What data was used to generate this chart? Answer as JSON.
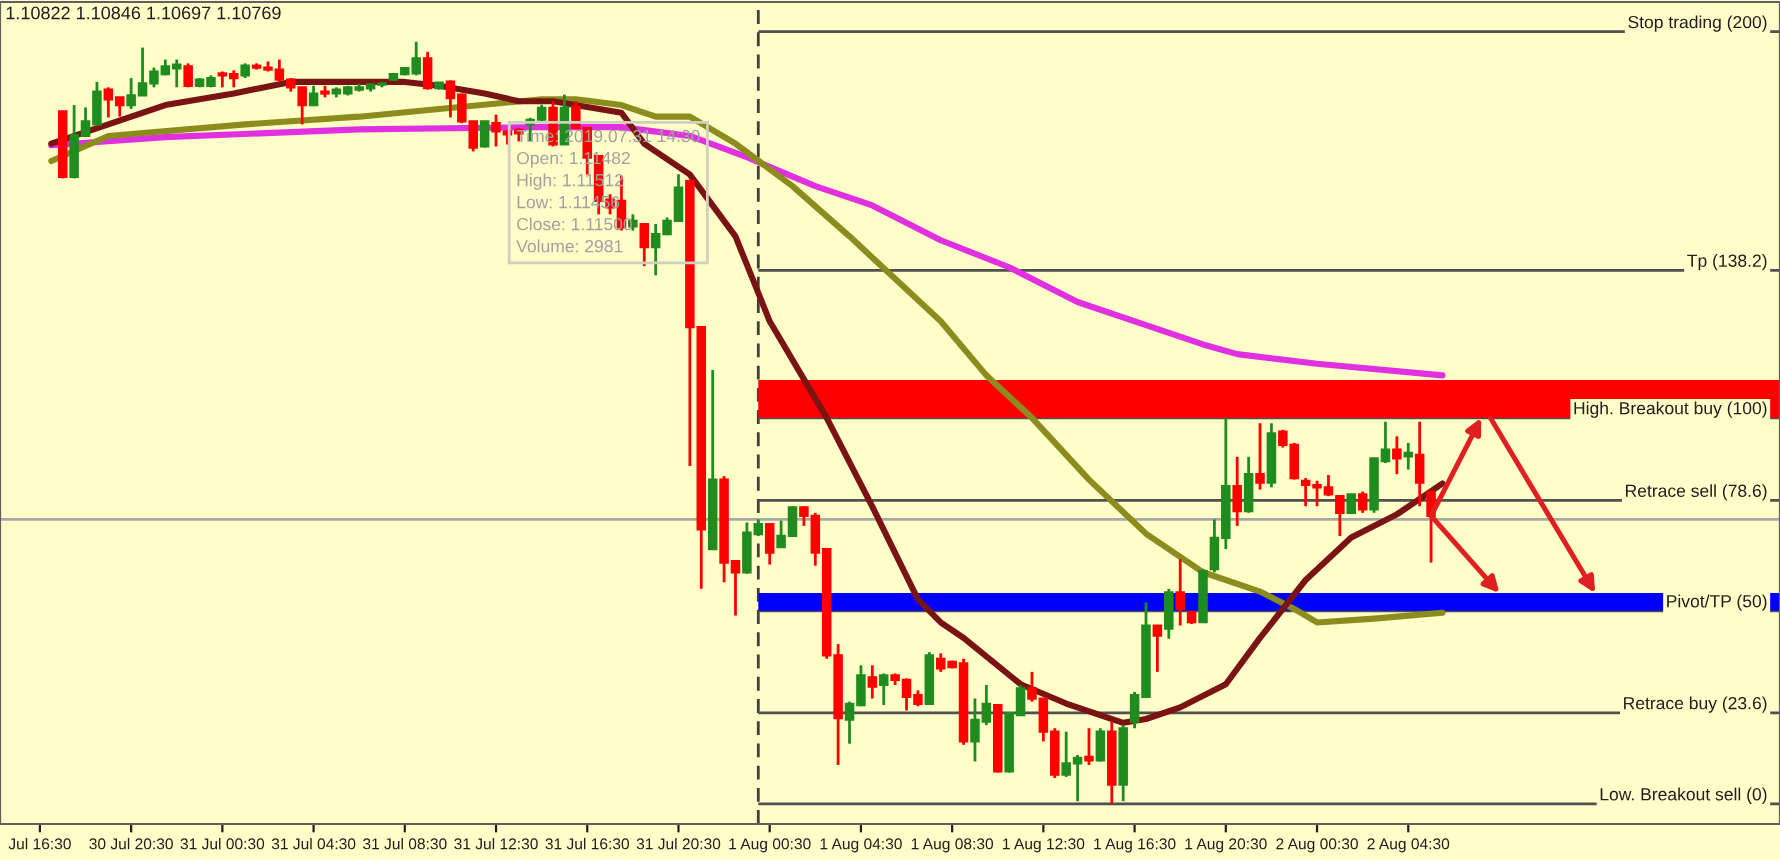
{
  "chart_data": {
    "type": "candlestick",
    "tick_labels": "x",
    "xlim": [
      "2019-07-30T14:45",
      "2019-08-02T20:48"
    ],
    "ylim": [
      -5.2,
      207.7
    ],
    "xticks": [
      {
        "value": "2019-07-30T16:30",
        "label": "Jul 16:30"
      },
      {
        "value": "2019-07-30T20:30",
        "label": "30 Jul 20:30"
      },
      {
        "value": "2019-07-31T00:30",
        "label": "31 Jul 00:30"
      },
      {
        "value": "2019-07-31T04:30",
        "label": "31 Jul 04:30"
      },
      {
        "value": "2019-07-31T08:30",
        "label": "31 Jul 08:30"
      },
      {
        "value": "2019-07-31T12:30",
        "label": "31 Jul 12:30"
      },
      {
        "value": "2019-07-31T16:30",
        "label": "31 Jul 16:30"
      },
      {
        "value": "2019-07-31T20:30",
        "label": "31 Jul 20:30"
      },
      {
        "value": "2019-08-01T00:30",
        "label": "1 Aug 00:30"
      },
      {
        "value": "2019-08-01T04:30",
        "label": "1 Aug 04:30"
      },
      {
        "value": "2019-08-01T08:30",
        "label": "1 Aug 08:30"
      },
      {
        "value": "2019-08-01T12:30",
        "label": "1 Aug 12:30"
      },
      {
        "value": "2019-08-01T16:30",
        "label": "1 Aug 16:30"
      },
      {
        "value": "2019-08-01T20:30",
        "label": "1 Aug 20:30"
      },
      {
        "value": "2019-08-02T00:30",
        "label": "2 Aug 00:30"
      },
      {
        "value": "2019-08-02T04:30",
        "label": "2 Aug 04:30"
      }
    ],
    "annotations": [
      "1.10822 1.10846 1.10697 1.10769",
      "Time: 2019.07.31 14:30\nOpen: 1.11482\nHigh: 1.11512\nLow: 1.11456\nClose: 1.11500\nVolume: 2981"
    ],
    "ref_lines": [
      {
        "axis": "x",
        "value": "2019-08-01T00:00",
        "line_style": "dashed",
        "color": "#404040"
      },
      {
        "axis": "y",
        "value": 200,
        "label": "Stop trading (200)",
        "color": "#505050"
      },
      {
        "axis": "y",
        "value": 138.2,
        "label": "Tp (138.2)",
        "color": "#505050"
      },
      {
        "axis": "y",
        "value": 100,
        "label": "High. Breakout buy (100)",
        "color": "#505050"
      },
      {
        "axis": "y",
        "value": 78.6,
        "label": "Retrace sell (78.6)",
        "color": "#505050"
      },
      {
        "axis": "y",
        "value": 73.7,
        "color": "#a8a8a8"
      },
      {
        "axis": "y",
        "value": 50,
        "label": "Pivot/TP (50)",
        "color": "#505050"
      },
      {
        "axis": "y",
        "value": 23.6,
        "label": "Retrace buy (23.6)",
        "color": "#505050"
      },
      {
        "axis": "y",
        "value": 0,
        "label": "Low. Breakout sell (0)",
        "color": "#505050"
      }
    ],
    "bands": [
      {
        "axis": "y",
        "from": 100,
        "to": 109.8,
        "color": "#ff0000"
      },
      {
        "axis": "y",
        "from": 50,
        "to": 54.6,
        "color": "#0000ff"
      }
    ],
    "series": [
      {
        "type": "line",
        "color": "#e030e0",
        "x": [
          "2019-07-30T17:00",
          "2019-07-30T22:00",
          "2019-07-31T06:30",
          "2019-07-31T14:30",
          "2019-07-31T18:00",
          "2019-07-31T21:00",
          "2019-07-31T23:30",
          "2019-08-01T02:30",
          "2019-08-01T05:00",
          "2019-08-01T08:00",
          "2019-08-01T11:00",
          "2019-08-01T14:00",
          "2019-08-01T17:00",
          "2019-08-01T19:30",
          "2019-08-01T21:00",
          "2019-08-02T00:30",
          "2019-08-02T06:00"
        ],
        "values": [
          170.6,
          172.7,
          174.7,
          175.3,
          175.3,
          173,
          167.5,
          160,
          155,
          146,
          139,
          130,
          124,
          119,
          116.5,
          114,
          111
        ]
      },
      {
        "type": "line",
        "color": "#8c8c1e",
        "x": [
          "2019-07-30T17:00",
          "2019-07-30T19:30",
          "2019-07-31T01:30",
          "2019-07-31T06:30",
          "2019-07-31T10:00",
          "2019-07-31T14:30",
          "2019-07-31T16:00",
          "2019-07-31T18:00",
          "2019-07-31T19:30",
          "2019-07-31T21:00",
          "2019-07-31T23:00",
          "2019-08-01T01:30",
          "2019-08-01T04:00",
          "2019-08-01T06:00",
          "2019-08-01T08:00",
          "2019-08-01T10:00",
          "2019-08-01T12:00",
          "2019-08-01T14:30",
          "2019-08-01T17:00",
          "2019-08-01T19:30",
          "2019-08-01T22:00",
          "2019-08-01T23:30",
          "2019-08-02T00:30",
          "2019-08-02T03:00",
          "2019-08-02T06:00"
        ],
        "values": [
          166.5,
          173,
          176,
          178,
          180,
          182.5,
          182.5,
          181,
          178,
          178,
          171,
          160,
          147,
          136,
          125,
          111,
          100,
          84,
          70,
          60,
          55,
          50.5,
          47,
          48,
          49.5
        ]
      },
      {
        "type": "line",
        "color": "#7a1414",
        "x": [
          "2019-07-30T17:00",
          "2019-07-30T19:30",
          "2019-07-30T22:00",
          "2019-07-31T01:00",
          "2019-07-31T03:30",
          "2019-07-31T06:00",
          "2019-07-31T08:30",
          "2019-07-31T10:00",
          "2019-07-31T12:00",
          "2019-07-31T13:30",
          "2019-07-31T15:00",
          "2019-07-31T18:00",
          "2019-07-31T19:00",
          "2019-07-31T21:00",
          "2019-07-31T23:00",
          "2019-08-01T00:30",
          "2019-08-01T03:00",
          "2019-08-01T05:00",
          "2019-08-01T07:00",
          "2019-08-01T08:00",
          "2019-08-01T09:00",
          "2019-08-01T11:30",
          "2019-08-01T13:30",
          "2019-08-01T16:00",
          "2019-08-01T17:00",
          "2019-08-01T18:30",
          "2019-08-01T20:30",
          "2019-08-01T22:00",
          "2019-08-02T00:00",
          "2019-08-02T02:00",
          "2019-08-02T04:00",
          "2019-08-02T05:30",
          "2019-08-02T06:00"
        ],
        "values": [
          171,
          176,
          181,
          184,
          187,
          187,
          187,
          186,
          184,
          182,
          182,
          179,
          171,
          163,
          147,
          125,
          100,
          77,
          53,
          47,
          43,
          31,
          26,
          21,
          22,
          25,
          31,
          43,
          58,
          69,
          75,
          81,
          83
        ]
      },
      {
        "x": [
          "2019-07-30T17:30",
          "2019-07-30T18:00",
          "2019-07-30T18:30",
          "2019-07-30T19:00",
          "2019-07-30T19:30",
          "2019-07-30T20:00",
          "2019-07-30T20:30",
          "2019-07-30T21:00",
          "2019-07-30T21:30",
          "2019-07-30T22:00",
          "2019-07-30T22:30",
          "2019-07-30T23:00",
          "2019-07-30T23:30",
          "2019-07-31T00:00",
          "2019-07-31T00:30",
          "2019-07-31T01:00",
          "2019-07-31T01:30",
          "2019-07-31T02:00",
          "2019-07-31T02:30",
          "2019-07-31T03:00",
          "2019-07-31T03:30",
          "2019-07-31T04:00",
          "2019-07-31T04:30",
          "2019-07-31T05:00",
          "2019-07-31T05:30",
          "2019-07-31T06:00",
          "2019-07-31T06:30",
          "2019-07-31T07:00",
          "2019-07-31T07:30",
          "2019-07-31T08:00",
          "2019-07-31T08:30",
          "2019-07-31T09:00",
          "2019-07-31T09:30",
          "2019-07-31T10:00",
          "2019-07-31T10:30",
          "2019-07-31T11:00",
          "2019-07-31T11:30",
          "2019-07-31T12:00",
          "2019-07-31T12:30",
          "2019-07-31T13:00",
          "2019-07-31T13:30",
          "2019-07-31T14:00",
          "2019-07-31T14:30",
          "2019-07-31T15:00",
          "2019-07-31T15:30",
          "2019-07-31T16:00",
          "2019-07-31T16:30",
          "2019-07-31T17:00",
          "2019-07-31T17:30",
          "2019-07-31T18:00",
          "2019-07-31T18:30",
          "2019-07-31T19:00",
          "2019-07-31T19:30",
          "2019-07-31T20:00",
          "2019-07-31T20:30",
          "2019-07-31T21:00",
          "2019-07-31T21:30",
          "2019-07-31T22:00",
          "2019-07-31T22:30",
          "2019-07-31T23:00",
          "2019-07-31T23:30",
          "2019-08-01T00:00",
          "2019-08-01T00:30",
          "2019-08-01T01:00",
          "2019-08-01T01:30",
          "2019-08-01T02:00",
          "2019-08-01T02:30",
          "2019-08-01T03:00",
          "2019-08-01T03:30",
          "2019-08-01T04:00",
          "2019-08-01T04:30",
          "2019-08-01T05:00",
          "2019-08-01T05:30",
          "2019-08-01T06:00",
          "2019-08-01T06:30",
          "2019-08-01T07:00",
          "2019-08-01T07:30",
          "2019-08-01T08:00",
          "2019-08-01T08:30",
          "2019-08-01T09:00",
          "2019-08-01T09:30",
          "2019-08-01T10:00",
          "2019-08-01T10:30",
          "2019-08-01T11:00",
          "2019-08-01T11:30",
          "2019-08-01T12:00",
          "2019-08-01T12:30",
          "2019-08-01T13:00",
          "2019-08-01T13:30",
          "2019-08-01T14:00",
          "2019-08-01T14:30",
          "2019-08-01T15:00",
          "2019-08-01T15:30",
          "2019-08-01T16:00",
          "2019-08-01T16:30",
          "2019-08-01T17:00",
          "2019-08-01T17:30",
          "2019-08-01T18:00",
          "2019-08-01T18:30",
          "2019-08-01T19:00",
          "2019-08-01T19:30",
          "2019-08-01T20:00",
          "2019-08-01T20:30",
          "2019-08-01T21:00",
          "2019-08-01T21:30",
          "2019-08-01T22:00",
          "2019-08-01T22:30",
          "2019-08-01T23:00",
          "2019-08-01T23:30",
          "2019-08-02T00:00",
          "2019-08-02T00:30",
          "2019-08-02T01:00",
          "2019-08-02T01:30",
          "2019-08-02T02:00",
          "2019-08-02T02:30",
          "2019-08-02T03:00",
          "2019-08-02T03:30",
          "2019-08-02T04:00",
          "2019-08-02T04:30",
          "2019-08-02T05:00",
          "2019-08-02T05:30"
        ],
        "ohlc": [
          [
            179.4,
            179.5,
            162,
            162.4
          ],
          [
            162.4,
            181,
            162,
            173.2
          ],
          [
            173,
            180.4,
            172.7,
            176.8
          ],
          [
            176,
            187,
            176,
            184.5
          ],
          [
            185,
            185.6,
            177.8,
            182.5
          ],
          [
            183,
            183,
            178,
            181
          ],
          [
            181,
            188,
            180,
            183.5
          ],
          [
            183.5,
            195.9,
            183.5,
            186.6
          ],
          [
            186.6,
            190.7,
            185.6,
            189.7
          ],
          [
            189,
            192.8,
            188.7,
            191
          ],
          [
            190.5,
            192.8,
            185.6,
            191.5
          ],
          [
            191,
            191.8,
            185.6,
            186
          ],
          [
            186,
            188,
            185.6,
            187.6
          ],
          [
            186,
            188.7,
            185.6,
            188
          ],
          [
            189.2,
            189.7,
            185.6,
            188.7
          ],
          [
            189,
            190,
            185.6,
            188
          ],
          [
            188.7,
            191.8,
            188,
            191.2
          ],
          [
            191.2,
            191.8,
            190.2,
            190.7
          ],
          [
            190.7,
            192.3,
            189.7,
            190.2
          ],
          [
            190.2,
            192.8,
            187,
            187.6
          ],
          [
            187.6,
            188,
            184.5,
            185.6
          ],
          [
            185.6,
            185.6,
            176,
            181
          ],
          [
            181,
            186,
            181,
            184
          ],
          [
            184.5,
            186,
            183,
            184
          ],
          [
            184,
            185.6,
            183,
            185
          ],
          [
            184,
            186,
            183.5,
            185.6
          ],
          [
            185,
            186.6,
            184.5,
            185.6
          ],
          [
            185.3,
            186.6,
            184.5,
            186.3
          ],
          [
            186.3,
            187,
            185.6,
            186.6
          ],
          [
            187.6,
            189.2,
            187.3,
            189
          ],
          [
            189,
            190.7,
            188.7,
            190.6
          ],
          [
            189.2,
            197.4,
            188.7,
            193.1
          ],
          [
            193.1,
            194.8,
            185,
            185.4
          ],
          [
            185.4,
            187,
            185,
            186.8
          ],
          [
            187.1,
            187.4,
            177.8,
            182.8
          ],
          [
            183.7,
            184,
            176.3,
            176.8
          ],
          [
            176.8,
            176.8,
            169,
            170
          ],
          [
            170.3,
            176.8,
            170,
            176.8
          ],
          [
            176.3,
            178.5,
            170.3,
            174.2
          ],
          [
            174.2,
            174.6,
            170.8,
            173.4
          ],
          [
            174.6,
            175.1,
            171.6,
            173.7
          ],
          [
            176,
            177.7,
            171.6,
            177.2
          ],
          [
            177.2,
            181.1,
            176.8,
            180.3
          ],
          [
            180.3,
            182,
            170.3,
            170.8
          ],
          [
            170.8,
            183.7,
            170.8,
            180.3
          ],
          [
            180.6,
            182,
            174.7,
            175.1
          ],
          [
            175.1,
            175.1,
            163,
            167.4
          ],
          [
            167.8,
            167.8,
            152.7,
            156.2
          ],
          [
            156.5,
            157.9,
            152.7,
            154.5
          ],
          [
            156.2,
            162.7,
            148.5,
            149.3
          ],
          [
            149.6,
            152.7,
            148.5,
            151
          ],
          [
            150.2,
            150.2,
            139.3,
            144.2
          ],
          [
            144.2,
            150.2,
            136.9,
            147.6
          ],
          [
            147.6,
            151.9,
            147.3,
            151
          ],
          [
            151,
            163.1,
            150.7,
            159.6
          ],
          [
            161.3,
            161.7,
            87.5,
            123.5
          ],
          [
            123.5,
            123.5,
            55.7,
            71.1
          ],
          [
            66,
            112.4,
            66,
            84
          ],
          [
            84,
            84.9,
            57.4,
            62.5
          ],
          [
            62.9,
            62.9,
            48.8,
            60
          ],
          [
            60,
            72.9,
            59.6,
            70.3
          ],
          [
            69.9,
            73.7,
            69.4,
            72.5
          ],
          [
            72.5,
            72.5,
            62,
            65.1
          ],
          [
            66.5,
            73.4,
            66.5,
            69.4
          ],
          [
            69.4,
            77.1,
            69.4,
            76.8
          ],
          [
            76.8,
            77.1,
            72,
            74.6
          ],
          [
            74.6,
            75.4,
            61.7,
            65.1
          ],
          [
            66,
            66,
            37.6,
            38.5
          ],
          [
            38.5,
            41.4,
            10.1,
            22.2
          ],
          [
            21.8,
            26.5,
            15.6,
            25.9
          ],
          [
            25.6,
            35.9,
            25.3,
            33.3
          ],
          [
            32.8,
            35.9,
            27.3,
            30.4
          ],
          [
            30.8,
            33.8,
            25.6,
            33.3
          ],
          [
            33.3,
            33.8,
            30.8,
            32.1
          ],
          [
            32.1,
            32.5,
            24.2,
            27.7
          ],
          [
            28.2,
            29.4,
            25.3,
            25.9
          ],
          [
            25.9,
            39.3,
            25.9,
            38.5
          ],
          [
            37.6,
            39,
            34.2,
            35.1
          ],
          [
            36.8,
            37.1,
            35.1,
            35.4
          ],
          [
            36.4,
            37.6,
            15.3,
            16.2
          ],
          [
            16.2,
            27.3,
            11,
            21.8
          ],
          [
            21.3,
            30.8,
            20.4,
            25.9
          ],
          [
            25.6,
            25.6,
            8.1,
            8.4
          ],
          [
            8.4,
            23.5,
            8.1,
            23.5
          ],
          [
            23,
            30.8,
            23,
            29.9
          ],
          [
            29.9,
            34.2,
            26.5,
            27.3
          ],
          [
            27.3,
            27.3,
            16.2,
            18.7
          ],
          [
            18.7,
            19.6,
            6.7,
            7.6
          ],
          [
            7.6,
            18.7,
            7,
            10.5
          ],
          [
            10.5,
            12.7,
            0.7,
            11.9
          ],
          [
            12.2,
            19.6,
            10.1,
            11.3
          ],
          [
            11.3,
            19.6,
            11,
            18.7
          ],
          [
            18.7,
            21.3,
            0,
            5
          ],
          [
            5,
            20.4,
            0.7,
            19.6
          ],
          [
            21.3,
            29,
            19.6,
            28.2
          ],
          [
            27.7,
            52.2,
            27.7,
            46.2
          ],
          [
            46.2,
            46.2,
            34.2,
            43.6
          ],
          [
            45.4,
            55.7,
            42.8,
            54.8
          ],
          [
            54.8,
            63.4,
            46.2,
            50.5
          ],
          [
            49.7,
            49.9,
            46.6,
            47.1
          ],
          [
            47.1,
            60.8,
            47.1,
            60.3
          ],
          [
            60.8,
            73.7,
            60,
            68.9
          ],
          [
            68.9,
            100,
            66,
            82.3
          ],
          [
            82.3,
            89.9,
            72,
            75.8
          ],
          [
            75.8,
            89.9,
            75.4,
            85.4
          ],
          [
            85.4,
            98.6,
            81.4,
            83.2
          ],
          [
            83.2,
            98.6,
            82,
            96
          ],
          [
            96.4,
            96.9,
            92.3,
            93
          ],
          [
            93,
            93.5,
            84,
            84.4
          ],
          [
            83.7,
            84.4,
            77.1,
            82.6
          ],
          [
            82.6,
            83.7,
            77.1,
            82
          ],
          [
            82,
            85.2,
            79.7,
            80.2
          ],
          [
            79.7,
            79.7,
            69.4,
            75.4
          ],
          [
            75.4,
            80.2,
            75.4,
            80.2
          ],
          [
            80.2,
            80.9,
            75.4,
            76.3
          ],
          [
            76.3,
            89.5,
            75.4,
            89.5
          ],
          [
            88.8,
            99,
            88.3,
            91.8
          ],
          [
            91.8,
            95.2,
            85.4,
            89.5
          ],
          [
            90,
            93.5,
            86.6,
            90.9
          ],
          [
            90.4,
            99,
            77.1,
            83.2
          ],
          [
            80.9,
            80.9,
            62.5,
            74.6
          ]
        ],
        "colors": [
          "#ff0000",
          "#1e8c1e",
          "#1e8c1e",
          "#1e8c1e",
          "#ff0000",
          "#ff0000",
          "#1e8c1e",
          "#1e8c1e",
          "#1e8c1e",
          "#1e8c1e",
          "#1e8c1e",
          "#ff0000",
          "#1e8c1e",
          "#1e8c1e",
          "#ff0000",
          "#ff0000",
          "#1e8c1e",
          "#ff0000",
          "#ff0000",
          "#ff0000",
          "#ff0000",
          "#ff0000",
          "#1e8c1e",
          "#ff0000",
          "#1e8c1e",
          "#1e8c1e",
          "#1e8c1e",
          "#1e8c1e",
          "#1e8c1e",
          "#1e8c1e",
          "#1e8c1e",
          "#1e8c1e",
          "#ff0000",
          "#1e8c1e",
          "#ff0000",
          "#ff0000",
          "#ff0000",
          "#1e8c1e",
          "#ff0000",
          "#ff0000",
          "#ff0000",
          "#1e8c1e",
          "#1e8c1e",
          "#ff0000",
          "#1e8c1e",
          "#ff0000",
          "#ff0000",
          "#ff0000",
          "#ff0000",
          "#ff0000",
          "#1e8c1e",
          "#ff0000",
          "#1e8c1e",
          "#1e8c1e",
          "#1e8c1e",
          "#ff0000",
          "#ff0000",
          "#1e8c1e",
          "#ff0000",
          "#ff0000",
          "#1e8c1e",
          "#1e8c1e",
          "#ff0000",
          "#1e8c1e",
          "#1e8c1e",
          "#ff0000",
          "#ff0000",
          "#ff0000",
          "#ff0000",
          "#1e8c1e",
          "#1e8c1e",
          "#ff0000",
          "#1e8c1e",
          "#ff0000",
          "#ff0000",
          "#ff0000",
          "#1e8c1e",
          "#ff0000",
          "#ff0000",
          "#ff0000",
          "#1e8c1e",
          "#1e8c1e",
          "#ff0000",
          "#1e8c1e",
          "#1e8c1e",
          "#ff0000",
          "#ff0000",
          "#ff0000",
          "#1e8c1e",
          "#1e8c1e",
          "#ff0000",
          "#1e8c1e",
          "#ff0000",
          "#1e8c1e",
          "#1e8c1e",
          "#1e8c1e",
          "#ff0000",
          "#1e8c1e",
          "#ff0000",
          "#ff0000",
          "#1e8c1e",
          "#1e8c1e",
          "#1e8c1e",
          "#ff0000",
          "#1e8c1e",
          "#ff0000",
          "#1e8c1e",
          "#ff0000",
          "#ff0000",
          "#ff0000",
          "#ff0000",
          "#ff0000",
          "#ff0000",
          "#1e8c1e",
          "#ff0000",
          "#1e8c1e",
          "#1e8c1e",
          "#ff0000",
          "#1e8c1e",
          "#ff0000",
          "#ff0000"
        ]
      }
    ]
  }
}
